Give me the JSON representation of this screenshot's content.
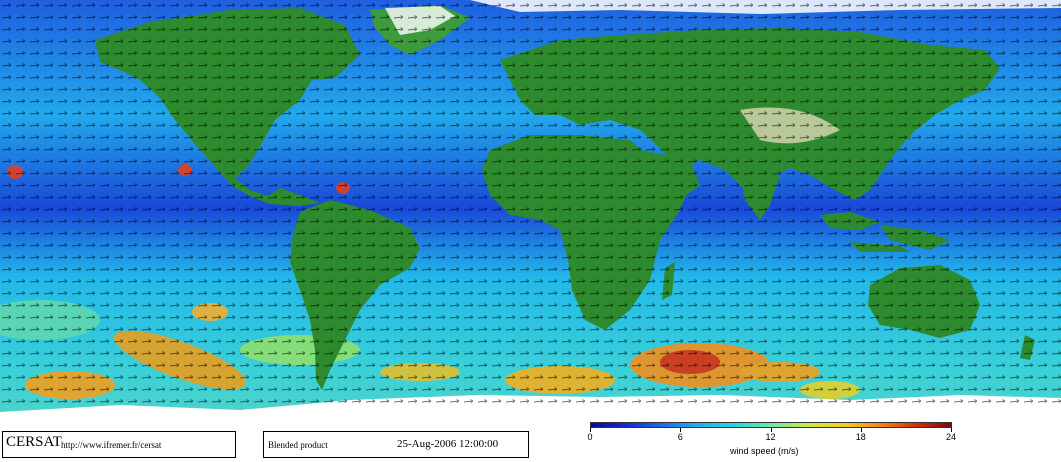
{
  "footer": {
    "brand": "CERSAT",
    "url": "http://www.ifremer.fr/cersat",
    "product": "Blended product",
    "datetime": "25-Aug-2006 12:00:00"
  },
  "legend": {
    "ticks": [
      "0",
      "6",
      "12",
      "18",
      "24"
    ],
    "tick_values": [
      0,
      6,
      12,
      18,
      24
    ],
    "range": [
      0,
      24
    ],
    "unit_label": "wind speed (m/s)"
  },
  "colors": {
    "ocean_low": "#1a3fd8",
    "ocean_mid": "#22c8e6",
    "ocean_high": "#e84a18",
    "land": "#2e8a2e",
    "ice": "#ffffff",
    "arrows": "#000000"
  }
}
